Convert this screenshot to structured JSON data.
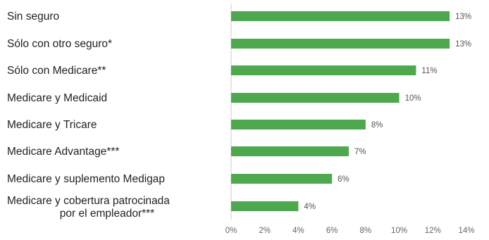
{
  "chart_data": {
    "type": "bar",
    "orientation": "horizontal",
    "categories": [
      [
        "Sin seguro"
      ],
      [
        "Sólo con otro seguro*"
      ],
      [
        "Sólo con Medicare**"
      ],
      [
        "Medicare y Medicaid"
      ],
      [
        "Medicare y Tricare"
      ],
      [
        "Medicare Advantage***"
      ],
      [
        "Medicare y suplemento Medigap"
      ],
      [
        "Medicare y cobertura patrocinada",
        "por el empleador***"
      ]
    ],
    "values": [
      13,
      13,
      11,
      10,
      8,
      7,
      6,
      4
    ],
    "value_labels": [
      "13%",
      "13%",
      "11%",
      "10%",
      "8%",
      "7%",
      "6%",
      "4%"
    ],
    "xlim": [
      0,
      14
    ],
    "ticks": [
      0,
      2,
      4,
      6,
      8,
      10,
      12,
      14
    ],
    "tick_labels": [
      "0%",
      "2%",
      "4%",
      "6%",
      "8%",
      "10%",
      "12%",
      "14%"
    ],
    "title": "",
    "xlabel": "",
    "ylabel": "",
    "grid": false,
    "legend": "none",
    "colors": {
      "bar": "#4ea84e",
      "axis": "#cccccc"
    }
  }
}
